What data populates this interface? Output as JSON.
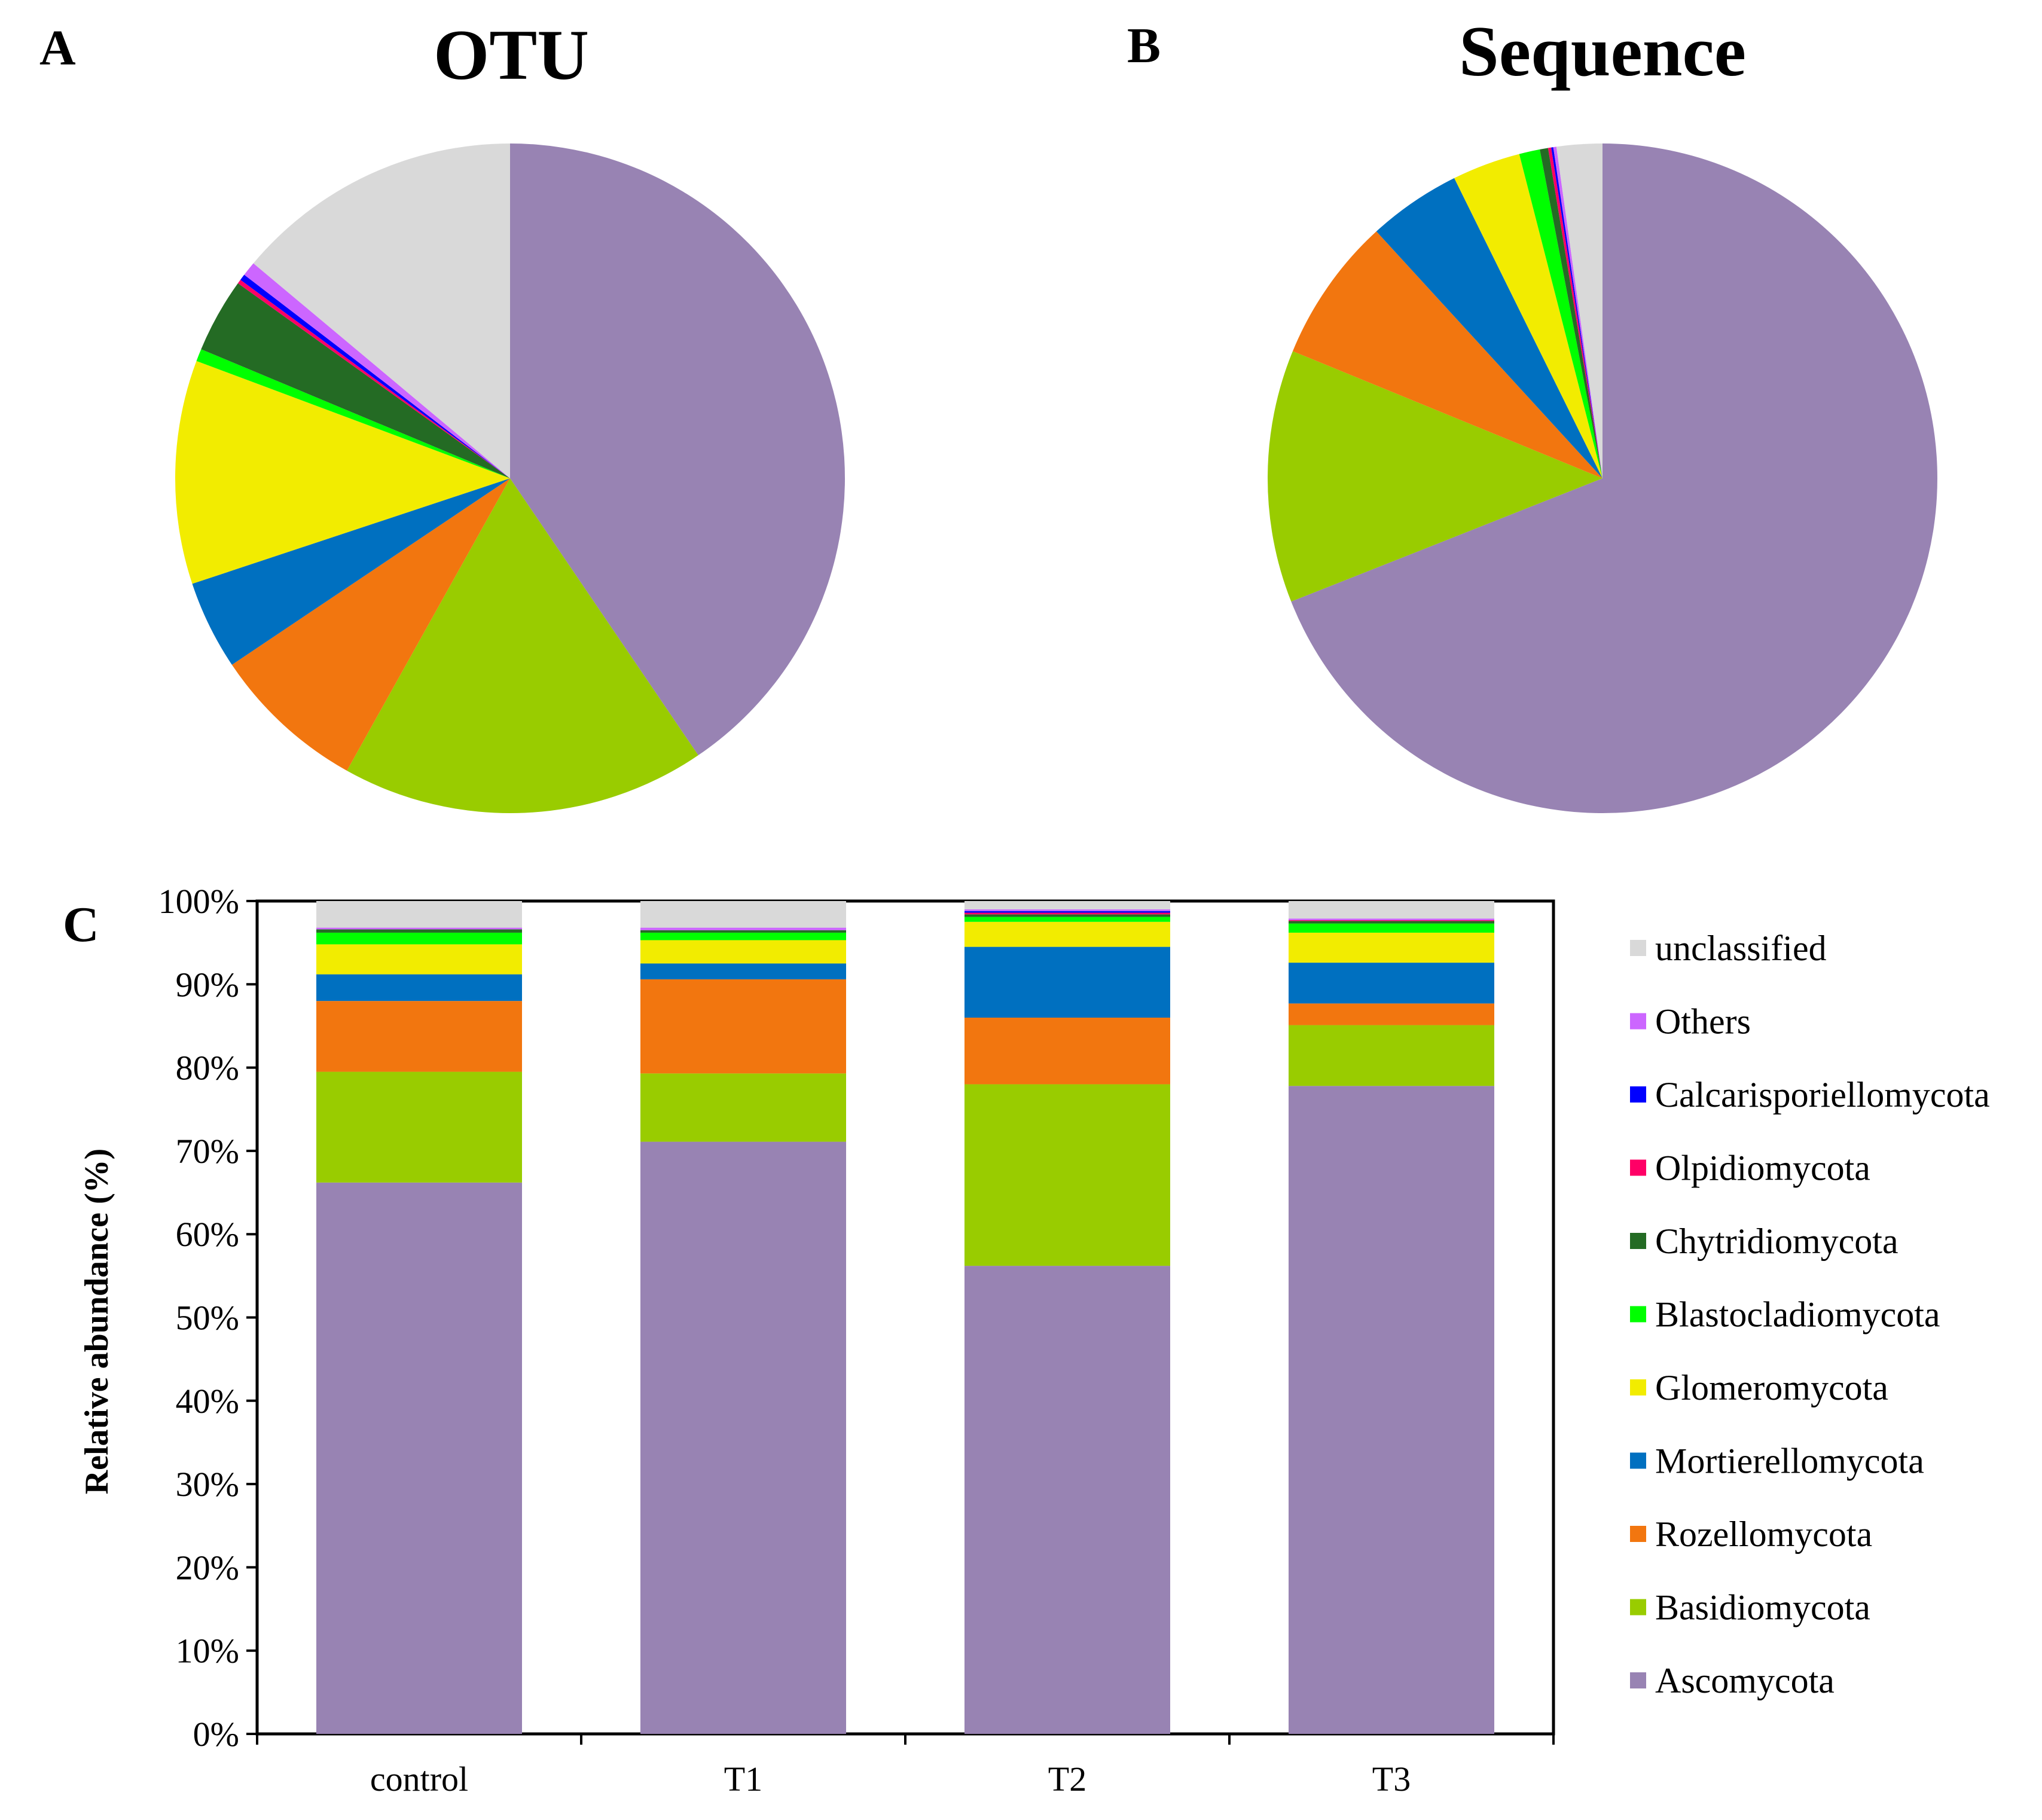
{
  "categories_legend_order": [
    "unclassified",
    "Others",
    "Calcarisporiellomycota",
    "Olpidiomycota",
    "Chytridiomycota",
    "Blastocladiomycota",
    "Glomeromycota",
    "Mortierellomycota",
    "Rozellomycota",
    "Basidiomycota",
    "Ascomycota"
  ],
  "colors": {
    "Ascomycota": "#9883b3",
    "Basidiomycota": "#99cc00",
    "Rozellomycota": "#f2760f",
    "Mortierellomycota": "#0070c0",
    "Glomeromycota": "#f2ec00",
    "Blastocladiomycota": "#00ff00",
    "Chytridiomycota": "#246b24",
    "Olpidiomycota": "#ff0066",
    "Calcarisporiellomycota": "#0000ff",
    "Others": "#cc66ff",
    "unclassified": "#d9d9d9"
  },
  "chart_data": [
    {
      "type": "pie",
      "panel": "A",
      "title": "OTU",
      "order": "clockwise from 12 o'clock",
      "slices": [
        {
          "label": "Ascomycota",
          "value": 40.5
        },
        {
          "label": "Basidiomycota",
          "value": 17.6
        },
        {
          "label": "Rozellomycota",
          "value": 7.5
        },
        {
          "label": "Mortierellomycota",
          "value": 4.3
        },
        {
          "label": "Glomeromycota",
          "value": 10.8
        },
        {
          "label": "Blastocladiomycota",
          "value": 0.6
        },
        {
          "label": "Chytridiomycota",
          "value": 3.6
        },
        {
          "label": "Olpidiomycota",
          "value": 0.2
        },
        {
          "label": "Calcarisporiellomycota",
          "value": 0.3
        },
        {
          "label": "Others",
          "value": 0.7
        },
        {
          "label": "unclassified",
          "value": 13.9
        }
      ]
    },
    {
      "type": "pie",
      "panel": "B",
      "title": "Sequence",
      "order": "clockwise from 12 o'clock",
      "slices": [
        {
          "label": "Ascomycota",
          "value": 69.0
        },
        {
          "label": "Basidiomycota",
          "value": 12.2
        },
        {
          "label": "Rozellomycota",
          "value": 7.0
        },
        {
          "label": "Mortierellomycota",
          "value": 4.5
        },
        {
          "label": "Glomeromycota",
          "value": 3.3
        },
        {
          "label": "Blastocladiomycota",
          "value": 1.0
        },
        {
          "label": "Chytridiomycota",
          "value": 0.4
        },
        {
          "label": "Olpidiomycota",
          "value": 0.15
        },
        {
          "label": "Calcarisporiellomycota",
          "value": 0.1
        },
        {
          "label": "Others",
          "value": 0.15
        },
        {
          "label": "unclassified",
          "value": 2.2
        }
      ]
    },
    {
      "type": "bar",
      "stacked": true,
      "panel": "C",
      "categories": [
        "control",
        "T1",
        "T2",
        "T3"
      ],
      "ylabel": "Relative abundance (%)",
      "xlabel": "",
      "ylim": [
        0,
        100
      ],
      "yticks": [
        "0%",
        "10%",
        "20%",
        "30%",
        "40%",
        "50%",
        "60%",
        "70%",
        "80%",
        "90%",
        "100%"
      ],
      "legend_position": "right",
      "series": [
        {
          "name": "Ascomycota",
          "values": [
            66.2,
            71.1,
            56.2,
            77.8
          ]
        },
        {
          "name": "Basidiomycota",
          "values": [
            13.3,
            8.2,
            21.8,
            7.3
          ]
        },
        {
          "name": "Rozellomycota",
          "values": [
            8.5,
            11.3,
            8.0,
            2.6
          ]
        },
        {
          "name": "Mortierellomycota",
          "values": [
            3.2,
            1.9,
            8.5,
            4.9
          ]
        },
        {
          "name": "Glomeromycota",
          "values": [
            3.6,
            2.8,
            3.0,
            3.6
          ]
        },
        {
          "name": "Blastocladiomycota",
          "values": [
            1.4,
            0.9,
            0.6,
            1.1
          ]
        },
        {
          "name": "Chytridiomycota",
          "values": [
            0.4,
            0.3,
            0.3,
            0.3
          ]
        },
        {
          "name": "Olpidiomycota",
          "values": [
            0.0,
            0.0,
            0.2,
            0.1
          ]
        },
        {
          "name": "Calcarisporiellomycota",
          "values": [
            0.0,
            0.0,
            0.2,
            0.0
          ]
        },
        {
          "name": "Others",
          "values": [
            0.2,
            0.3,
            0.2,
            0.2
          ]
        },
        {
          "name": "unclassified",
          "values": [
            3.2,
            3.2,
            1.0,
            2.1
          ]
        }
      ]
    }
  ]
}
